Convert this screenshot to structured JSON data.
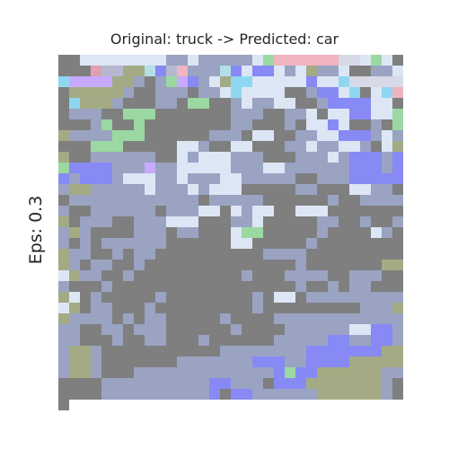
{
  "figure": {
    "title": "Original: truck -> Predicted: car",
    "ylabel": "Eps: 0.3"
  },
  "image": {
    "rows": 32,
    "cols": 32,
    "pixels": [
      "..ccccccccbbcbbbbbcgooooooaacgc..",
      "..qkkyylmkobbblmcmmcbcybbc..bbcx",
      "ppppyyb.bgpmbcyxxcccccmccxaaaaa.",
      "yyyyyb..bbb.bbcxcccc..bmmcx.cxo.",
      "xyyyb...bb.gg..bcbbcc..bmmmmcc..",
      "bbb..ggg.......bbb..bbc.ccmmccg.",
      "..bg..g........bb...b.ccmc..b.gy",
      "bbbbggg......bbb.cc..bbccmmmbcb.",
      "..ggg.....ccb..cc...bbcbbccb.cyy",
      "..bbbbbb..cbcccbbb...bbbcbmmmbmg",
      "mmmmbbbpbbcccccbbbccbbbbbbmmmbmm",
      "bmmmbcccbbcbbbccbbbbb..bbbmmmmmb",
      "yybbbbbcbbbcbccc.....bb...ccbb..",
      "bbbbbbbbbbbb.bbbbb......b..bbbbb",
      "..bbbbbb.bbbcc.cbcc..ccc.......y",
      ".bbb..bbbccc...bbc.....bb..b..bb",
      "yb....bbb.bb...cgg.....b....cb.b",
      ".b.bbbbbb......cc.....b........y",
      "bb..b.bb..........bbbb.........y",
      "b.bb..b..............b.......yyc",
      "ybb..b..........b...bbbb..bbb..b",
      "...b.................b..b.bb...y",
      "c.b.....b........b.cc.bbbbbbbbbc",
      "y.bb...b.........b.........bbbyy",
      "bbbb.b.bb.....b....bbbbbbbbbbbbb",
      "b..bb.bbb......b....bbbbbbccmmbb",
      "b...b..bb...b......bbbbbmmbbmmbb",
      "yyb...........bbbbbbbbmmmmmmmyyb",
      "yyb.......bbbbbbbmmmbbmmmmyyyyyb",
      "yyb...bbbbbbbbbbbbbmgmmyyyyyybb.",
      "...bbbbbbbbbbmmbbb.mmmyyyyyyyb..",
      "...bbbbbbbbbbm.mmbbbbbbyyyyyyb.."
    ]
  },
  "colors": {
    ".": "#7f7f7f",
    "c": "#dce6f5",
    "b": "#9aa3c2",
    "o": "#f0b4c0",
    "g": "#9bd8a2",
    "a": "#d7d9e6",
    "x": "#8fd7f0",
    "q": "#e0a0b0",
    "k": "#b5b8cf",
    "y": "#a4ab84",
    "l": "#b4dfe9",
    "m": "#8789f5",
    "p": "#c7a9ff"
  }
}
